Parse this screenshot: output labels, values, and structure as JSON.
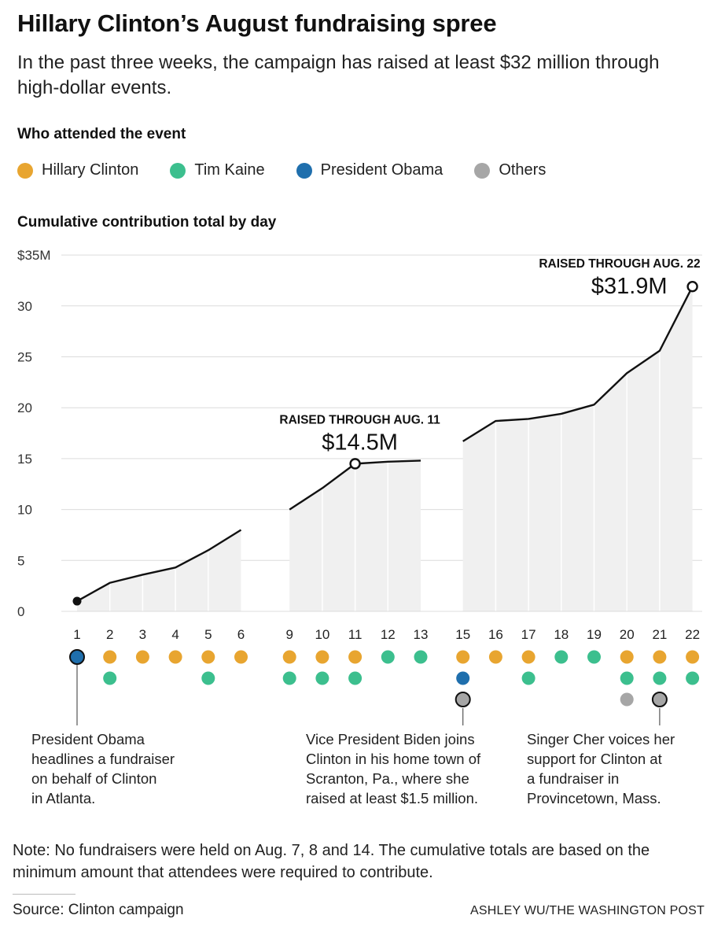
{
  "header": {
    "title": "Hillary Clinton’s August fundraising spree",
    "subtitle": "In the past three weeks, the campaign has raised at least $32 million through high-dollar events."
  },
  "legend": {
    "heading": "Who attended the event",
    "items": [
      {
        "key": "clinton",
        "label": "Hillary Clinton",
        "color": "#e8a530"
      },
      {
        "key": "kaine",
        "label": "Tim Kaine",
        "color": "#3cbf8e"
      },
      {
        "key": "obama",
        "label": "President Obama",
        "color": "#1f6fad"
      },
      {
        "key": "others",
        "label": "Others",
        "color": "#a6a6a6"
      }
    ]
  },
  "chart_heading": "Cumulative contribution total by day",
  "chart_data": {
    "type": "area",
    "ylim": [
      0,
      35
    ],
    "yticks": [
      {
        "value": 35,
        "label": "$35M"
      },
      {
        "value": 30,
        "label": "30"
      },
      {
        "value": 25,
        "label": "25"
      },
      {
        "value": 20,
        "label": "20"
      },
      {
        "value": 15,
        "label": "15"
      },
      {
        "value": 10,
        "label": "10"
      },
      {
        "value": 5,
        "label": "5"
      },
      {
        "value": 0,
        "label": "0"
      }
    ],
    "grid": true,
    "segments": [
      {
        "days": [
          1,
          2,
          3,
          4,
          5,
          6
        ],
        "values": [
          1.0,
          2.8,
          3.6,
          4.3,
          6.0,
          8.0
        ]
      },
      {
        "days": [
          9,
          10,
          11,
          12,
          13
        ],
        "values": [
          10.0,
          12.1,
          14.5,
          14.7,
          14.8
        ]
      },
      {
        "days": [
          15,
          16,
          17,
          18,
          19,
          20,
          21,
          22
        ],
        "values": [
          16.7,
          18.7,
          18.9,
          19.4,
          20.3,
          23.4,
          25.6,
          31.9
        ]
      }
    ],
    "attendees": {
      "1": [
        "obama"
      ],
      "2": [
        "clinton",
        "kaine"
      ],
      "3": [
        "clinton"
      ],
      "4": [
        "clinton"
      ],
      "5": [
        "clinton",
        "kaine"
      ],
      "6": [
        "clinton"
      ],
      "9": [
        "clinton",
        "kaine"
      ],
      "10": [
        "clinton",
        "kaine"
      ],
      "11": [
        "clinton",
        "kaine"
      ],
      "12": [
        "kaine"
      ],
      "13": [
        "kaine"
      ],
      "15": [
        "clinton",
        "obama",
        "others"
      ],
      "16": [
        "clinton"
      ],
      "17": [
        "clinton",
        "kaine"
      ],
      "18": [
        "kaine"
      ],
      "19": [
        "kaine"
      ],
      "20": [
        "clinton",
        "kaine",
        "others"
      ],
      "21": [
        "clinton",
        "kaine",
        "others"
      ],
      "22": [
        "clinton",
        "kaine"
      ]
    },
    "callouts": [
      {
        "day": 11,
        "value": 14.5,
        "label": "RAISED THROUGH AUG. 11",
        "amount": "$14.5M"
      },
      {
        "day": 22,
        "value": 31.9,
        "label": "RAISED THROUGH AUG. 22",
        "amount": "$31.9M"
      }
    ]
  },
  "annotations": [
    {
      "day": 1,
      "text": [
        "President Obama",
        "headlines a fundraiser",
        "on behalf of Clinton",
        "in Atlanta."
      ]
    },
    {
      "day": 15,
      "text": [
        "Vice President Biden joins",
        "Clinton in his home town of",
        "Scranton, Pa., where she",
        "raised at least $1.5 million."
      ]
    },
    {
      "day": 21,
      "text": [
        "Singer Cher voices her",
        "support for Clinton at",
        "a fundraiser in",
        "Provincetown, Mass."
      ]
    }
  ],
  "footer": {
    "note": "Note: No fundraisers were held on Aug. 7, 8 and 14. The cumulative totals are based on the minimum amount that attendees were required to contribute.",
    "source": "Source: Clinton campaign",
    "credit": "ASHLEY WU/THE WASHINGTON POST"
  }
}
